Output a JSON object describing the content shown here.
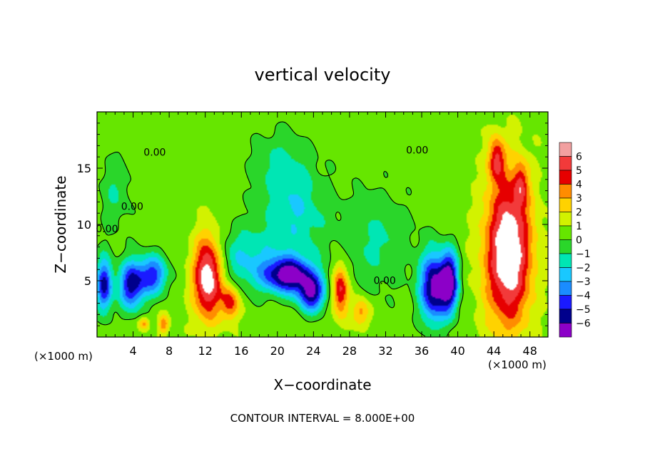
{
  "chart_data": {
    "type": "heatmap",
    "title": "vertical velocity",
    "xlabel": "X−coordinate",
    "ylabel": "Z−coordinate",
    "x_units_left": "(×1000 m)",
    "x_units_right": "(×1000 m)",
    "footer": "CONTOUR INTERVAL = 8.000E+00",
    "xlim": [
      0,
      50
    ],
    "ylim": [
      0,
      20
    ],
    "x_ticks": [
      4,
      8,
      12,
      16,
      20,
      24,
      28,
      32,
      36,
      40,
      44,
      48
    ],
    "x_tick_labels": [
      "4",
      "8",
      "12",
      "16",
      "20",
      "24",
      "28",
      "32",
      "36",
      "40",
      "44",
      "48"
    ],
    "y_ticks": [
      5,
      10,
      15
    ],
    "y_tick_labels": [
      "5",
      "10",
      "15"
    ],
    "contour_labels": [
      {
        "text": "0.00",
        "x": 6.4,
        "y": 16.1
      },
      {
        "text": "0.00",
        "x": 3.9,
        "y": 11.3
      },
      {
        "text": "0.00",
        "x": 1.1,
        "y": 9.3
      },
      {
        "text": "0.00",
        "x": 35.5,
        "y": 16.3
      },
      {
        "text": "0.00",
        "x": 31.9,
        "y": 4.7
      }
    ],
    "colorbar": {
      "levels": [
        6,
        5,
        4,
        3,
        2,
        1,
        0,
        -1,
        -2,
        -3,
        -4,
        -5,
        -6
      ],
      "labels": [
        "6",
        "5",
        "4",
        "3",
        "2",
        "1",
        "0",
        "−1",
        "−2",
        "−3",
        "−4",
        "−5",
        "−6"
      ],
      "colors": [
        "#f2a0a0",
        "#f23a3a",
        "#e60000",
        "#ff8c00",
        "#ffd200",
        "#d2f200",
        "#66e600",
        "#2ad62a",
        "#00e6b4",
        "#19c8ff",
        "#1a8cff",
        "#1a1aff",
        "#00008c",
        "#8c00c8"
      ]
    },
    "features": [
      {
        "kind": "updraft",
        "x": 12.3,
        "z": 5.4,
        "rx": 1.6,
        "rz": 3.6,
        "strength": 7
      },
      {
        "kind": "updraft",
        "x": 14.8,
        "z": 3.1,
        "rx": 1.0,
        "rz": 1.6,
        "strength": 4
      },
      {
        "kind": "updraft",
        "x": 45.6,
        "z": 7.5,
        "rx": 2.6,
        "rz": 6.6,
        "strength": 7
      },
      {
        "kind": "updraft",
        "x": 44.3,
        "z": 15.8,
        "rx": 0.9,
        "rz": 2.0,
        "strength": 4
      },
      {
        "kind": "updraft",
        "x": 47.0,
        "z": 13.6,
        "rx": 0.8,
        "rz": 2.0,
        "strength": 3
      },
      {
        "kind": "updraft",
        "x": 27.0,
        "z": 4.2,
        "rx": 0.9,
        "rz": 2.3,
        "strength": 5
      },
      {
        "kind": "updraft",
        "x": 29.3,
        "z": 2.2,
        "rx": 1.0,
        "rz": 1.3,
        "strength": 3
      },
      {
        "kind": "updraft",
        "x": 5.2,
        "z": 1.2,
        "rx": 0.6,
        "rz": 0.6,
        "strength": 3
      },
      {
        "kind": "updraft",
        "x": 7.4,
        "z": 1.1,
        "rx": 0.6,
        "rz": 0.9,
        "strength": 3
      },
      {
        "kind": "downdraft",
        "x": 21.2,
        "z": 5.5,
        "rx": 2.8,
        "rz": 1.6,
        "strength": -7
      },
      {
        "kind": "downdraft",
        "x": 23.8,
        "z": 3.8,
        "rx": 1.5,
        "rz": 1.6,
        "strength": -6
      },
      {
        "kind": "downdraft",
        "x": 37.3,
        "z": 4.4,
        "rx": 1.5,
        "rz": 3.1,
        "strength": -7
      },
      {
        "kind": "downdraft",
        "x": 39.1,
        "z": 4.9,
        "rx": 1.0,
        "rz": 2.7,
        "strength": -7
      },
      {
        "kind": "downdraft",
        "x": 3.8,
        "z": 4.6,
        "rx": 1.4,
        "rz": 2.2,
        "strength": -6
      },
      {
        "kind": "downdraft",
        "x": 6.2,
        "z": 5.5,
        "rx": 1.6,
        "rz": 1.8,
        "strength": -5
      },
      {
        "kind": "downdraft",
        "x": 0.8,
        "z": 4.6,
        "rx": 0.9,
        "rz": 2.4,
        "strength": -6
      },
      {
        "kind": "downdraft",
        "x": 16.2,
        "z": 7.0,
        "rx": 3.5,
        "rz": 2.8,
        "strength": -2.5
      },
      {
        "kind": "downdraft",
        "x": 22.0,
        "z": 11.0,
        "rx": 3.6,
        "rz": 4.5,
        "strength": -2.5
      },
      {
        "kind": "downdraft",
        "x": 31.0,
        "z": 8.5,
        "rx": 4.0,
        "rz": 4.5,
        "strength": -1.8
      },
      {
        "kind": "downdraft",
        "x": 20.0,
        "z": 15.5,
        "rx": 3.0,
        "rz": 3.0,
        "strength": -1.4
      },
      {
        "kind": "downdraft",
        "x": 2.0,
        "z": 13.0,
        "rx": 1.8,
        "rz": 3.5,
        "strength": -1.6
      }
    ]
  }
}
